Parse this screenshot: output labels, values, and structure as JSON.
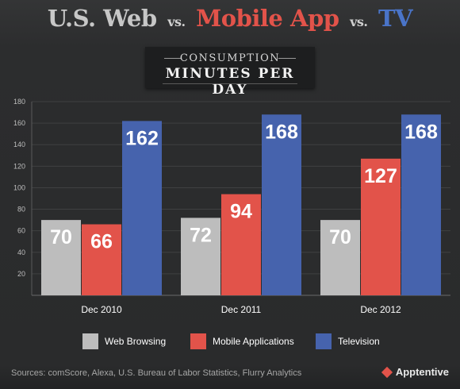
{
  "header": {
    "title_web": "U.S. Web",
    "title_vs1": "vs.",
    "title_mobile": "Mobile App",
    "title_vs2": "vs.",
    "title_tv": "TV",
    "subtitle_line1": "CONSUMPTION",
    "subtitle_line2": "MINUTES PER DAY"
  },
  "colors": {
    "web": "#bdbdbd",
    "mobile": "#e2534a",
    "tv": "#4663ad",
    "title_web": "#c7c7c7",
    "title_mobile": "#e2534a",
    "title_tv": "#4a74c8"
  },
  "chart_data": {
    "type": "bar",
    "categories": [
      "Dec 2010",
      "Dec 2011",
      "Dec 2012"
    ],
    "series": [
      {
        "name": "Web Browsing",
        "values": [
          70,
          72,
          70
        ],
        "color": "#bdbdbd"
      },
      {
        "name": "Mobile Applications",
        "values": [
          66,
          94,
          127
        ],
        "color": "#e2534a"
      },
      {
        "name": "Television",
        "values": [
          162,
          168,
          168
        ],
        "color": "#4663ad"
      }
    ],
    "ylim": [
      0,
      180
    ],
    "yticks": [
      "",
      "20",
      "40",
      "60",
      "80",
      "100",
      "120",
      "140",
      "160",
      "180"
    ],
    "grid": true,
    "legend_position": "bottom"
  },
  "footer": {
    "sources": "Sources: comScore, Alexa, U.S. Bureau of Labor Statistics, Flurry Analytics",
    "brand": "Apptentive",
    "brand_icon": "apptentive-logo-icon"
  }
}
